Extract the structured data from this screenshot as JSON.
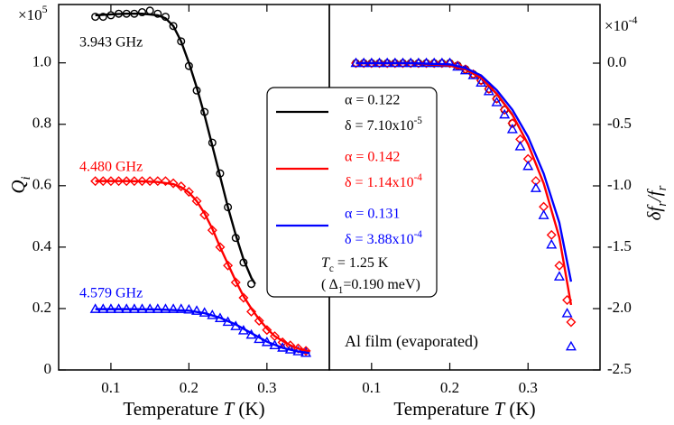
{
  "chart_data": [
    {
      "type": "scatter",
      "xlabel": {
        "text": "Temperature ",
        "symbol": "T",
        "unit": " (K)"
      },
      "ylabel": {
        "symbol": "Q",
        "subscript": "i"
      },
      "multiplier": {
        "base": "×10",
        "exponent": "5"
      },
      "xlim": [
        0.033,
        0.38
      ],
      "ylim": [
        0,
        1.19
      ],
      "xticks": [
        0.1,
        0.2,
        0.3
      ],
      "yticks": [
        0,
        0.2,
        0.4,
        0.6,
        0.8,
        {
          "value": 1,
          "label": "1.0"
        }
      ],
      "series": [
        {
          "name": "3.943 GHz",
          "color": "#000000",
          "marker": "circle",
          "x": [
            0.08,
            0.09,
            0.1,
            0.11,
            0.12,
            0.13,
            0.14,
            0.15,
            0.16,
            0.17,
            0.18,
            0.19,
            0.2,
            0.21,
            0.22,
            0.23,
            0.24,
            0.25,
            0.26,
            0.27,
            0.28
          ],
          "values": [
            1.15,
            1.15,
            1.155,
            1.16,
            1.16,
            1.16,
            1.165,
            1.17,
            1.16,
            1.15,
            1.12,
            1.07,
            0.99,
            0.91,
            0.84,
            0.74,
            0.64,
            0.53,
            0.43,
            0.35,
            0.28
          ]
        },
        {
          "name": "4.480 GHz",
          "color": "#ff0000",
          "marker": "diamond",
          "x": [
            0.08,
            0.09,
            0.1,
            0.11,
            0.12,
            0.13,
            0.14,
            0.15,
            0.16,
            0.17,
            0.18,
            0.19,
            0.2,
            0.21,
            0.22,
            0.23,
            0.24,
            0.25,
            0.26,
            0.27,
            0.28,
            0.29,
            0.3,
            0.31,
            0.32,
            0.33,
            0.34,
            0.35
          ],
          "values": [
            0.615,
            0.615,
            0.615,
            0.615,
            0.615,
            0.615,
            0.615,
            0.615,
            0.615,
            0.615,
            0.608,
            0.598,
            0.58,
            0.55,
            0.505,
            0.455,
            0.4,
            0.34,
            0.285,
            0.235,
            0.19,
            0.16,
            0.13,
            0.11,
            0.09,
            0.08,
            0.07,
            0.062
          ]
        },
        {
          "name": "4.579 GHz",
          "color": "#0000ff",
          "marker": "triangle",
          "x": [
            0.08,
            0.09,
            0.1,
            0.11,
            0.12,
            0.13,
            0.14,
            0.15,
            0.16,
            0.17,
            0.18,
            0.19,
            0.2,
            0.21,
            0.22,
            0.23,
            0.24,
            0.25,
            0.26,
            0.27,
            0.28,
            0.29,
            0.3,
            0.31,
            0.32,
            0.33,
            0.34,
            0.35
          ],
          "values": [
            0.198,
            0.198,
            0.198,
            0.198,
            0.198,
            0.198,
            0.198,
            0.198,
            0.198,
            0.198,
            0.198,
            0.198,
            0.196,
            0.192,
            0.186,
            0.178,
            0.168,
            0.156,
            0.142,
            0.128,
            0.114,
            0.1,
            0.09,
            0.08,
            0.072,
            0.066,
            0.06,
            0.055
          ]
        },
        {
          "color": "#000000",
          "marker": "line",
          "x": [
            0.08,
            0.1,
            0.12,
            0.14,
            0.16,
            0.17,
            0.18,
            0.19,
            0.2,
            0.21,
            0.22,
            0.23,
            0.24,
            0.25,
            0.26,
            0.27,
            0.28,
            0.285
          ],
          "values": [
            1.155,
            1.158,
            1.16,
            1.16,
            1.155,
            1.145,
            1.12,
            1.07,
            1.0,
            0.92,
            0.83,
            0.73,
            0.63,
            0.53,
            0.44,
            0.36,
            0.3,
            0.28
          ]
        },
        {
          "color": "#ff0000",
          "marker": "line",
          "x": [
            0.08,
            0.1,
            0.12,
            0.14,
            0.16,
            0.18,
            0.19,
            0.2,
            0.21,
            0.22,
            0.23,
            0.24,
            0.25,
            0.26,
            0.27,
            0.28,
            0.29,
            0.3,
            0.31,
            0.32,
            0.33,
            0.34,
            0.35,
            0.355
          ],
          "values": [
            0.615,
            0.615,
            0.615,
            0.614,
            0.612,
            0.605,
            0.595,
            0.578,
            0.55,
            0.51,
            0.46,
            0.4,
            0.345,
            0.29,
            0.24,
            0.2,
            0.165,
            0.135,
            0.11,
            0.095,
            0.08,
            0.07,
            0.063,
            0.06
          ]
        },
        {
          "color": "#0000ff",
          "marker": "line",
          "x": [
            0.08,
            0.12,
            0.16,
            0.2,
            0.22,
            0.24,
            0.26,
            0.28,
            0.3,
            0.32,
            0.34,
            0.355
          ],
          "values": [
            0.198,
            0.198,
            0.197,
            0.193,
            0.185,
            0.17,
            0.148,
            0.12,
            0.092,
            0.072,
            0.06,
            0.055
          ]
        }
      ]
    },
    {
      "type": "scatter",
      "xlabel": {
        "text": "Temperature ",
        "symbol": "T",
        "unit": " (K)"
      },
      "ylabel": {
        "symbol": "δf",
        "subscript": "r",
        "slash": "/f",
        "subscript2": "r"
      },
      "multiplier": {
        "base": "×10",
        "exponent": "-4"
      },
      "xlim": [
        0.046,
        0.392
      ],
      "ylim": [
        -2.5,
        0.478
      ],
      "xticks": [
        0.1,
        0.2,
        0.3
      ],
      "yticks": [
        -2.5,
        {
          "value": -2,
          "label": "-2.0"
        },
        -1.5,
        {
          "value": -1,
          "label": "-1.0"
        },
        -0.5,
        {
          "value": 0,
          "label": "0.0"
        }
      ],
      "annotation": "Al film (evaporated)",
      "legend_box": [
        {
          "alpha": "α = 0.122",
          "delta": "δ = 7.10x10",
          "exponent": "-5",
          "color": "#000000"
        },
        {
          "alpha": "α = 0.142",
          "delta": "δ = 1.14x10",
          "exponent": "-4",
          "color": "#ff0000"
        },
        {
          "alpha": "α = 0.131",
          "delta": "δ = 3.88x10",
          "exponent": "-4",
          "color": "#0000ff"
        }
      ],
      "tc": {
        "symbol": "T",
        "subscript": "c",
        "text": " = 1.25 K"
      },
      "gap": {
        "open": "( Δ",
        "subscript": "1",
        "text": "=0.190 meV)"
      },
      "series": [
        {
          "color": "#000000",
          "marker": "circle",
          "x": [
            0.08,
            0.09,
            0.1,
            0.11,
            0.12,
            0.13,
            0.14,
            0.15,
            0.16,
            0.17,
            0.18,
            0.19,
            0.2,
            0.21,
            0.22,
            0.23,
            0.24,
            0.25,
            0.26,
            0.27,
            0.28
          ],
          "values": [
            0,
            0,
            0,
            0,
            0,
            0,
            0,
            0,
            0,
            0,
            0,
            0,
            0,
            -0.02,
            -0.05,
            -0.09,
            -0.14,
            -0.21,
            -0.29,
            -0.38,
            -0.49
          ]
        },
        {
          "color": "#ff0000",
          "marker": "diamond",
          "x": [
            0.08,
            0.09,
            0.1,
            0.11,
            0.12,
            0.13,
            0.14,
            0.15,
            0.16,
            0.17,
            0.18,
            0.19,
            0.2,
            0.21,
            0.22,
            0.23,
            0.24,
            0.25,
            0.26,
            0.27,
            0.28,
            0.29,
            0.3,
            0.31,
            0.32,
            0.33,
            0.34,
            0.35,
            0.355
          ],
          "values": [
            0,
            0,
            0,
            0,
            0,
            0,
            0,
            0,
            0,
            0,
            0,
            0,
            0,
            -0.02,
            -0.05,
            -0.09,
            -0.14,
            -0.21,
            -0.29,
            -0.38,
            -0.49,
            -0.62,
            -0.78,
            -0.96,
            -1.17,
            -1.4,
            -1.65,
            -1.93,
            -2.11
          ]
        },
        {
          "color": "#0000ff",
          "marker": "triangle",
          "x": [
            0.08,
            0.09,
            0.1,
            0.11,
            0.12,
            0.13,
            0.14,
            0.15,
            0.16,
            0.17,
            0.18,
            0.19,
            0.2,
            0.21,
            0.22,
            0.23,
            0.24,
            0.25,
            0.26,
            0.27,
            0.28,
            0.29,
            0.3,
            0.31,
            0.32,
            0.33,
            0.34,
            0.35,
            0.355
          ],
          "values": [
            0,
            0,
            0,
            0,
            0,
            0,
            0,
            0,
            0,
            0,
            0,
            0,
            0,
            -0.03,
            -0.06,
            -0.1,
            -0.16,
            -0.23,
            -0.32,
            -0.42,
            -0.54,
            -0.68,
            -0.84,
            -1.02,
            -1.24,
            -1.48,
            -1.74,
            -2.04,
            -2.31
          ]
        },
        {
          "color": "#000000",
          "marker": "line",
          "x": [
            0.08,
            0.15,
            0.2,
            0.22,
            0.24,
            0.26,
            0.28
          ],
          "values": [
            0,
            0,
            -0.02,
            -0.05,
            -0.12,
            -0.25,
            -0.42
          ]
        },
        {
          "color": "#ff0000",
          "marker": "line",
          "x": [
            0.08,
            0.15,
            0.2,
            0.22,
            0.24,
            0.26,
            0.28,
            0.3,
            0.32,
            0.34,
            0.355
          ],
          "values": [
            0,
            0,
            -0.02,
            -0.05,
            -0.12,
            -0.25,
            -0.42,
            -0.66,
            -0.98,
            -1.42,
            -1.97
          ]
        },
        {
          "color": "#0000ff",
          "marker": "line",
          "x": [
            0.08,
            0.15,
            0.2,
            0.22,
            0.24,
            0.26,
            0.28,
            0.3,
            0.32,
            0.34,
            0.355
          ],
          "values": [
            0,
            0,
            -0.01,
            -0.04,
            -0.1,
            -0.22,
            -0.38,
            -0.6,
            -0.9,
            -1.3,
            -1.78
          ]
        }
      ]
    }
  ]
}
